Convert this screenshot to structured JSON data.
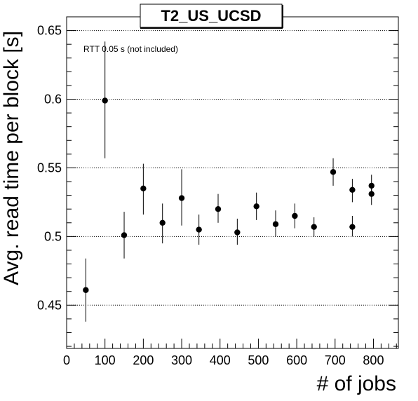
{
  "chart_data": {
    "type": "scatter",
    "title": "T2_US_UCSD",
    "xlabel": "# of jobs",
    "ylabel": "Avg. read time per block [s]",
    "annotation": "RTT 0.05 s (not included)",
    "xlim": [
      0,
      865
    ],
    "ylim": [
      0.4185,
      0.66
    ],
    "x_ticks": [
      0,
      100,
      200,
      300,
      400,
      500,
      600,
      700,
      800
    ],
    "x_tick_labels": [
      "0",
      "100",
      "200",
      "300",
      "400",
      "500",
      "600",
      "700",
      "800"
    ],
    "y_ticks": [
      0.45,
      0.5,
      0.55,
      0.6,
      0.65
    ],
    "y_tick_labels": [
      "0.45",
      "0.5",
      "0.55",
      "0.6",
      "0.65"
    ],
    "grid": "horizontal-dotted",
    "points": [
      {
        "x": 50,
        "y": 0.461,
        "ylow": 0.438,
        "yhigh": 0.484
      },
      {
        "x": 100,
        "y": 0.599,
        "ylow": 0.557,
        "yhigh": 0.642
      },
      {
        "x": 150,
        "y": 0.501,
        "ylow": 0.484,
        "yhigh": 0.518
      },
      {
        "x": 200,
        "y": 0.535,
        "ylow": 0.516,
        "yhigh": 0.553
      },
      {
        "x": 250,
        "y": 0.51,
        "ylow": 0.495,
        "yhigh": 0.524
      },
      {
        "x": 300,
        "y": 0.528,
        "ylow": 0.508,
        "yhigh": 0.549
      },
      {
        "x": 345,
        "y": 0.505,
        "ylow": 0.494,
        "yhigh": 0.516
      },
      {
        "x": 395,
        "y": 0.52,
        "ylow": 0.51,
        "yhigh": 0.531
      },
      {
        "x": 445,
        "y": 0.503,
        "ylow": 0.494,
        "yhigh": 0.513
      },
      {
        "x": 495,
        "y": 0.522,
        "ylow": 0.512,
        "yhigh": 0.532
      },
      {
        "x": 545,
        "y": 0.509,
        "ylow": 0.5,
        "yhigh": 0.519
      },
      {
        "x": 595,
        "y": 0.515,
        "ylow": 0.506,
        "yhigh": 0.524
      },
      {
        "x": 645,
        "y": 0.507,
        "ylow": 0.5,
        "yhigh": 0.514
      },
      {
        "x": 695,
        "y": 0.547,
        "ylow": 0.537,
        "yhigh": 0.557
      },
      {
        "x": 745,
        "y": 0.534,
        "ylow": 0.525,
        "yhigh": 0.542
      },
      {
        "x": 745,
        "y": 0.507,
        "ylow": 0.5,
        "yhigh": 0.515
      },
      {
        "x": 795,
        "y": 0.537,
        "ylow": 0.53,
        "yhigh": 0.545
      },
      {
        "x": 795,
        "y": 0.531,
        "ylow": 0.523,
        "yhigh": 0.539
      }
    ]
  }
}
